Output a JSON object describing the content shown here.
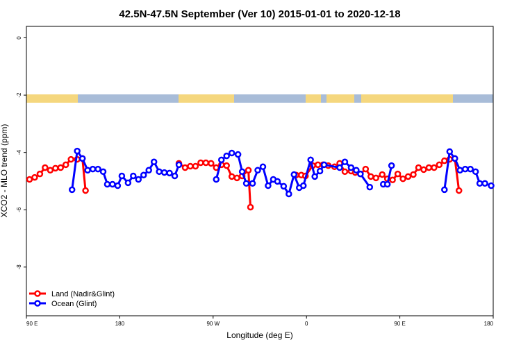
{
  "chart_data": {
    "type": "line",
    "title": "42.5N-47.5N September (Ver 10)   2015-01-01 to 2020-12-18",
    "x_label": "Longitude (deg E)",
    "y_label": "XCO2 - MLO trend (ppm)",
    "xlim": [
      90,
      540
    ],
    "xticks": [
      {
        "value": 90,
        "label": "90 E"
      },
      180,
      {
        "value": 270,
        "label": "90 W"
      },
      {
        "value": 360,
        "label": "0"
      },
      {
        "value": 450,
        "label": "90 E"
      },
      {
        "value": 540,
        "label": "180"
      }
    ],
    "ylim": [
      -9.7,
      0.4
    ],
    "yticks": [
      0,
      -2,
      -4,
      -6,
      -8
    ],
    "legend": "bottom-left",
    "series": [
      {
        "name": "Land (Nadir&Glint)",
        "color": "#ff0000",
        "x": [
          93,
          98,
          103,
          108,
          113,
          118,
          123,
          128,
          133,
          139,
          144,
          147,
          null,
          237,
          243,
          248,
          253,
          258,
          263,
          268,
          273,
          278,
          283,
          288,
          293,
          298,
          304,
          306,
          null,
          350,
          355,
          359,
          366,
          371,
          376,
          381,
          387,
          392,
          397,
          403,
          407,
          412,
          417,
          422,
          427,
          433,
          438,
          443,
          448,
          453,
          458,
          463,
          468,
          473,
          478,
          483,
          488,
          493,
          498,
          503,
          507
        ],
        "values": [
          -4.94,
          -4.87,
          -4.75,
          -4.53,
          -4.62,
          -4.55,
          -4.53,
          -4.43,
          -4.24,
          -4.24,
          -4.21,
          -5.33,
          null,
          -4.38,
          -4.53,
          -4.48,
          -4.48,
          -4.36,
          -4.36,
          -4.38,
          -4.53,
          -4.43,
          -4.46,
          -4.84,
          -4.89,
          -4.82,
          -4.62,
          -5.91,
          null,
          -4.79,
          -4.79,
          -4.82,
          -4.46,
          -4.43,
          -4.43,
          -4.46,
          -4.5,
          -4.38,
          -4.67,
          -4.65,
          -4.7,
          -4.75,
          -4.58,
          -4.84,
          -4.89,
          -4.77,
          -4.92,
          -4.96,
          -4.75,
          -4.92,
          -4.84,
          -4.77,
          -4.53,
          -4.6,
          -4.53,
          -4.53,
          -4.43,
          -4.29,
          -4.24,
          -4.21,
          -5.33
        ]
      },
      {
        "name": "Ocean (Glint)",
        "color": "#0000ff",
        "x": [
          134,
          139,
          144,
          149,
          154,
          159,
          164,
          168,
          173,
          178,
          182,
          188,
          193,
          198,
          203,
          208,
          213,
          218,
          223,
          228,
          233,
          237,
          null,
          273,
          278,
          283,
          288,
          294,
          298,
          302,
          308,
          313,
          318,
          323,
          328,
          332,
          338,
          343,
          348,
          353,
          357,
          364,
          368,
          373,
          377,
          392,
          397,
          403,
          408,
          412,
          421,
          null,
          434,
          438,
          442,
          null,
          493,
          498,
          503,
          508,
          513,
          518,
          523,
          527,
          532,
          538
        ],
        "values": [
          -5.3,
          -3.95,
          -4.21,
          -4.62,
          -4.58,
          -4.58,
          -4.67,
          -5.11,
          -5.11,
          -5.16,
          -4.82,
          -5.06,
          -4.82,
          -4.94,
          -4.79,
          -4.62,
          -4.33,
          -4.67,
          -4.7,
          -4.72,
          -4.82,
          -4.43,
          null,
          -4.94,
          -4.26,
          -4.12,
          -4.02,
          -4.07,
          -4.67,
          -5.08,
          -5.08,
          -4.62,
          -4.5,
          -5.16,
          -4.94,
          -5.01,
          -5.18,
          -5.45,
          -4.77,
          -5.23,
          -5.16,
          -4.26,
          -4.84,
          -4.65,
          -4.43,
          -4.53,
          -4.33,
          -4.53,
          -4.62,
          -4.75,
          -5.21,
          null,
          -5.11,
          -5.11,
          -4.46,
          null,
          -5.3,
          -3.97,
          -4.21,
          -4.62,
          -4.58,
          -4.58,
          -4.67,
          -5.08,
          -5.08,
          -5.16
        ]
      }
    ]
  }
}
